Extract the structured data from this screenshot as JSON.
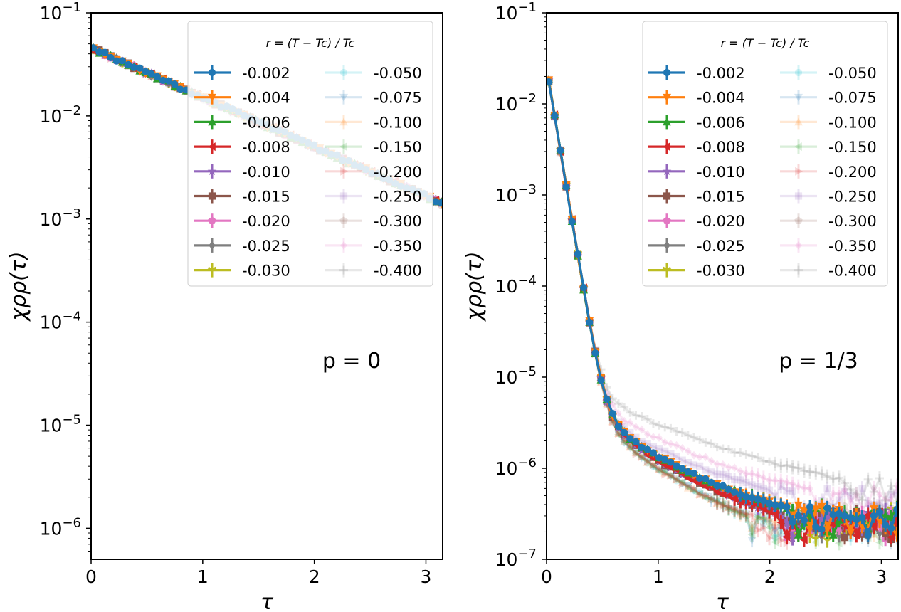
{
  "chart_data": [
    {
      "type": "line",
      "annotation": "p = 0",
      "xlabel": "τ",
      "ylabel": "χρρ(τ)",
      "xlim": [
        0,
        3.15
      ],
      "ylim": [
        5e-07,
        0.1
      ],
      "yscale": "log",
      "xticks": [
        "0",
        "1",
        "2",
        "3"
      ],
      "yticks": [
        {
          "value": 0.1,
          "exp": "−1"
        },
        {
          "value": 0.01,
          "exp": "−2"
        },
        {
          "value": 0.001,
          "exp": "−3"
        },
        {
          "value": 0.0001,
          "exp": "−4"
        },
        {
          "value": 1e-05,
          "exp": "−5"
        },
        {
          "value": 1e-06,
          "exp": "−6"
        }
      ],
      "legend": {
        "title": "r = (T − Tc) / Tc",
        "placement": "top-right"
      },
      "series": [
        {
          "name": "-0.002",
          "color": "#1f77b4",
          "marker": "circle",
          "faded": false,
          "decay": [
            0.045,
            1.1,
            0.0004,
            1.0,
            0.000105,
            1.0
          ],
          "floor": 5e-07
        },
        {
          "name": "-0.004",
          "color": "#ff7f0e",
          "marker": "triangle-down",
          "faded": false,
          "decay": [
            0.045,
            1.1,
            0.00045,
            1.25,
            9.5e-05,
            1.4
          ],
          "floor": 5e-07
        },
        {
          "name": "-0.006",
          "color": "#2ca02c",
          "marker": "triangle-up",
          "faded": false,
          "decay": [
            0.045,
            1.1,
            0.0005,
            1.35,
            9e-05,
            1.9
          ],
          "floor": 5e-07
        },
        {
          "name": "-0.008",
          "color": "#d62728",
          "marker": "triangle-left",
          "faded": false,
          "decay": [
            0.045,
            1.1,
            0.0005,
            1.5,
            8e-05,
            2.3
          ],
          "floor": 5e-07
        },
        {
          "name": "-0.010",
          "color": "#9467bd",
          "marker": "star",
          "faded": false,
          "decay": [
            0.045,
            1.1,
            0.0005,
            1.6,
            7e-05,
            2.6
          ],
          "floor": 5e-07
        },
        {
          "name": "-0.015",
          "color": "#8c564b",
          "marker": "square",
          "faded": false,
          "decay": [
            0.045,
            1.1,
            0.0005,
            1.8,
            6e-05,
            3.0
          ],
          "floor": 5e-07
        },
        {
          "name": "-0.020",
          "color": "#e377c2",
          "marker": "pentagon",
          "faded": false,
          "decay": [
            0.045,
            1.1,
            0.0005,
            2.0,
            5e-05,
            3.3
          ],
          "floor": 5e-07
        },
        {
          "name": "-0.025",
          "color": "#7f7f7f",
          "marker": "diamond",
          "faded": false,
          "decay": [
            0.045,
            1.1,
            0.0005,
            2.2,
            4e-05,
            3.6
          ],
          "floor": 5e-07
        },
        {
          "name": "-0.030",
          "color": "#bcbd22",
          "marker": "tri-down",
          "faded": false,
          "decay": [
            0.045,
            1.1,
            0.0005,
            2.4,
            3e-05,
            4.0
          ],
          "floor": 5e-07
        },
        {
          "name": "-0.050",
          "color": "#17becf",
          "marker": "circle",
          "faded": true,
          "decay": [
            0.045,
            1.1,
            0.0005,
            3.0,
            2e-05,
            5.0
          ],
          "floor": 5e-07
        },
        {
          "name": "-0.075",
          "color": "#1f77b4",
          "marker": "triangle-down",
          "faded": true,
          "decay": [
            0.045,
            1.1,
            0.0005,
            3.5,
            1.5e-05,
            6.0
          ],
          "floor": 5e-07
        },
        {
          "name": "-0.100",
          "color": "#ff7f0e",
          "marker": "triangle-up",
          "faded": true,
          "decay": [
            0.045,
            1.1,
            0.0005,
            4.0,
            1e-05,
            7.0
          ],
          "floor": 5e-07
        },
        {
          "name": "-0.150",
          "color": "#2ca02c",
          "marker": "triangle-left",
          "faded": true,
          "decay": [
            0.045,
            1.1,
            0.0005,
            5.0,
            8e-06,
            8.0
          ],
          "floor": 5e-07
        },
        {
          "name": "-0.200",
          "color": "#d62728",
          "marker": "triangle-right",
          "faded": true,
          "decay": [
            0.045,
            1.1,
            0.0005,
            6.0,
            6e-06,
            9.0
          ],
          "floor": 5e-07
        },
        {
          "name": "-0.250",
          "color": "#9467bd",
          "marker": "square",
          "faded": true,
          "decay": [
            0.045,
            1.1,
            0.0005,
            7.0,
            5e-06,
            10.0
          ],
          "floor": 5e-07
        },
        {
          "name": "-0.300",
          "color": "#8c564b",
          "marker": "pentagon",
          "faded": true,
          "decay": [
            0.045,
            1.1,
            0.0005,
            8.0,
            4e-06,
            11.0
          ],
          "floor": 5e-07
        },
        {
          "name": "-0.350",
          "color": "#e377c2",
          "marker": "diamond",
          "faded": true,
          "decay": [
            0.045,
            1.1,
            0.0005,
            9.0,
            3e-06,
            12.0
          ],
          "floor": 5e-07
        },
        {
          "name": "-0.400",
          "color": "#7f7f7f",
          "marker": "plus",
          "faded": true,
          "decay": [
            0.045,
            1.1,
            0.0005,
            10.0,
            2e-06,
            13.0
          ],
          "floor": 5e-07
        }
      ]
    },
    {
      "type": "line",
      "annotation": "p = 1/3",
      "xlabel": "τ",
      "ylabel": "χρρ(τ)",
      "xlim": [
        0,
        3.15
      ],
      "ylim": [
        1e-07,
        0.1
      ],
      "yscale": "log",
      "xticks": [
        "0",
        "1",
        "2",
        "3"
      ],
      "yticks": [
        {
          "value": 0.1,
          "exp": "−1"
        },
        {
          "value": 0.01,
          "exp": "−2"
        },
        {
          "value": 0.001,
          "exp": "−3"
        },
        {
          "value": 0.0001,
          "exp": "−4"
        },
        {
          "value": 1e-05,
          "exp": "−5"
        },
        {
          "value": 1e-06,
          "exp": "−6"
        },
        {
          "value": 1e-07,
          "exp": "−7"
        }
      ],
      "legend": {
        "title": "r = (T − Tc) / Tc",
        "placement": "top-right"
      },
      "series": [
        {
          "name": "-0.002",
          "color": "#1f77b4",
          "marker": "circle",
          "faded": false,
          "decay": [
            0.025,
            17,
            8.5e-06,
            2.5,
            1.2e-06,
            0.6
          ],
          "floor": 1.8e-07
        },
        {
          "name": "-0.004",
          "color": "#ff7f0e",
          "marker": "triangle-down",
          "faded": false,
          "decay": [
            0.025,
            17,
            8.5e-06,
            2.5,
            1.2e-06,
            0.6
          ],
          "floor": 1.8e-07
        },
        {
          "name": "-0.006",
          "color": "#2ca02c",
          "marker": "triangle-up",
          "faded": false,
          "decay": [
            0.025,
            17,
            8.5e-06,
            2.5,
            1.2e-06,
            0.6
          ],
          "floor": 1.8e-07
        },
        {
          "name": "-0.008",
          "color": "#d62728",
          "marker": "triangle-left",
          "faded": false,
          "decay": [
            0.025,
            17,
            8.5e-06,
            2.6,
            1.2e-06,
            0.7
          ],
          "floor": 1.6e-07
        },
        {
          "name": "-0.010",
          "color": "#9467bd",
          "marker": "star",
          "faded": false,
          "decay": [
            0.025,
            17,
            8.5e-06,
            2.6,
            1.2e-06,
            0.7
          ],
          "floor": 1.6e-07
        },
        {
          "name": "-0.015",
          "color": "#8c564b",
          "marker": "square",
          "faded": false,
          "decay": [
            0.025,
            17,
            8.5e-06,
            2.6,
            1.2e-06,
            0.7
          ],
          "floor": 1.6e-07
        },
        {
          "name": "-0.020",
          "color": "#e377c2",
          "marker": "pentagon",
          "faded": false,
          "decay": [
            0.025,
            17,
            8.5e-06,
            2.5,
            1.2e-06,
            0.7
          ],
          "floor": 1.6e-07
        },
        {
          "name": "-0.025",
          "color": "#7f7f7f",
          "marker": "diamond",
          "faded": false,
          "decay": [
            0.025,
            17,
            8.5e-06,
            2.5,
            1.2e-06,
            0.7
          ],
          "floor": 1.6e-07
        },
        {
          "name": "-0.030",
          "color": "#bcbd22",
          "marker": "tri-down",
          "faded": false,
          "decay": [
            0.025,
            17,
            8.5e-06,
            2.5,
            1.2e-06,
            0.7
          ],
          "floor": 1.6e-07
        },
        {
          "name": "-0.050",
          "color": "#17becf",
          "marker": "circle",
          "faded": true,
          "decay": [
            0.025,
            17,
            8e-06,
            2.7,
            1e-06,
            0.8
          ],
          "floor": 1.5e-07
        },
        {
          "name": "-0.075",
          "color": "#1f77b4",
          "marker": "triangle-down",
          "faded": true,
          "decay": [
            0.025,
            17,
            8e-06,
            2.7,
            1e-06,
            0.8
          ],
          "floor": 1.5e-07
        },
        {
          "name": "-0.100",
          "color": "#ff7f0e",
          "marker": "triangle-up",
          "faded": true,
          "decay": [
            0.025,
            17,
            8e-06,
            2.7,
            1e-06,
            0.8
          ],
          "floor": 1.5e-07
        },
        {
          "name": "-0.150",
          "color": "#2ca02c",
          "marker": "triangle-left",
          "faded": true,
          "decay": [
            0.025,
            17,
            8e-06,
            2.7,
            1e-06,
            0.8
          ],
          "floor": 1.5e-07
        },
        {
          "name": "-0.200",
          "color": "#d62728",
          "marker": "triangle-right",
          "faded": true,
          "decay": [
            0.025,
            17,
            8e-06,
            2.7,
            1e-06,
            0.8
          ],
          "floor": 1.5e-07
        },
        {
          "name": "-0.250",
          "color": "#9467bd",
          "marker": "square",
          "faded": true,
          "decay": [
            0.025,
            17,
            8e-06,
            2.3,
            1.4e-06,
            0.5
          ],
          "floor": 3e-07
        },
        {
          "name": "-0.300",
          "color": "#8c564b",
          "marker": "pentagon",
          "faded": true,
          "decay": [
            0.025,
            17,
            8e-06,
            2.5,
            1.2e-06,
            0.6
          ],
          "floor": 2e-07
        },
        {
          "name": "-0.350",
          "color": "#e377c2",
          "marker": "diamond",
          "faded": true,
          "decay": [
            0.025,
            17,
            8.5e-06,
            2.0,
            1.5e-06,
            0.45
          ],
          "floor": 3e-07
        },
        {
          "name": "-0.400",
          "color": "#7f7f7f",
          "marker": "plus",
          "faded": true,
          "decay": [
            0.025,
            17,
            9e-06,
            1.6,
            1.8e-06,
            0.4
          ],
          "floor": 3.8e-07
        }
      ]
    }
  ]
}
